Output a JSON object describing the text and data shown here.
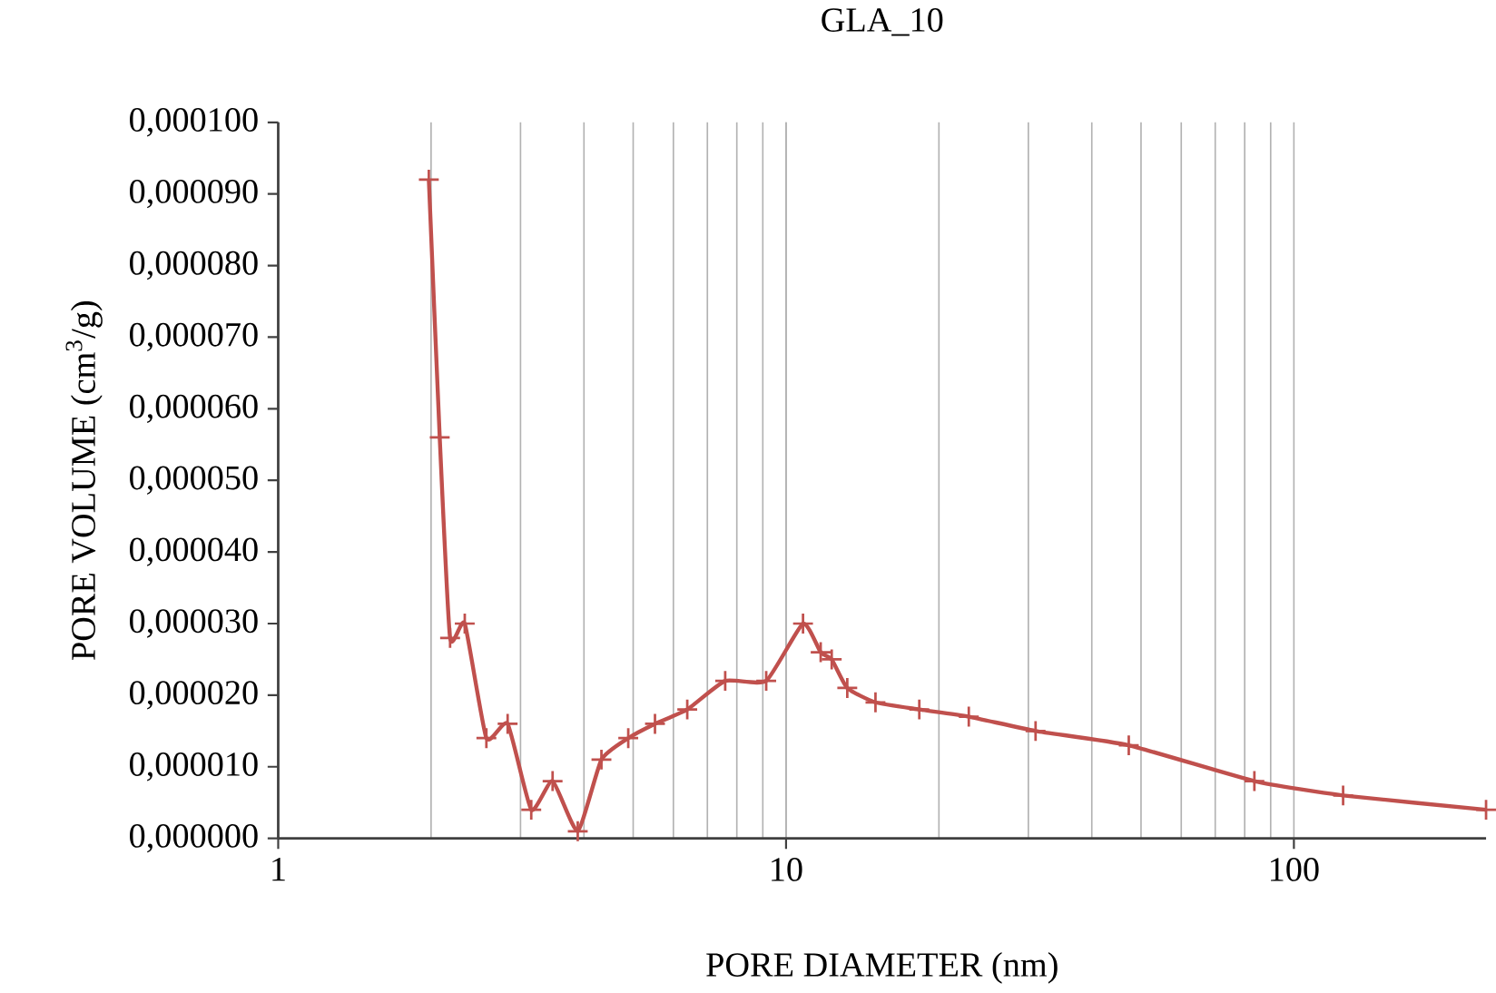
{
  "chart_data": {
    "type": "line",
    "title": "GLA_10",
    "xlabel": "PORE DIAMETER  (nm)",
    "ylabel": "PORE VOLUME  (cm$^{3}$/g)",
    "log": "x",
    "grid": "x",
    "marker": "cross",
    "line_style": "solid",
    "x": [
      1.98,
      2.08,
      2.18,
      2.33,
      2.57,
      2.83,
      3.15,
      3.47,
      3.89,
      4.33,
      4.89,
      5.52,
      6.39,
      7.59,
      9.14,
      10.8,
      11.7,
      12.3,
      13.2,
      15.0,
      18.3,
      22.9,
      31,
      47.3,
      83.6,
      125,
      239
    ],
    "series": [
      {
        "color": "#c0504d",
        "values": [
          9.2e-05,
          5.6e-05,
          2.8e-05,
          3e-05,
          1.4e-05,
          1.6e-05,
          4e-06,
          8e-06,
          1e-06,
          1.1e-05,
          1.4e-05,
          1.6e-05,
          1.8e-05,
          2.2e-05,
          2.2e-05,
          3e-05,
          2.6e-05,
          2.5e-05,
          2.1e-05,
          1.9e-05,
          1.8e-05,
          1.7e-05,
          1.5e-05,
          1.3e-05,
          8e-06,
          6e-06,
          4e-06
        ]
      }
    ],
    "xlim": [
      1,
      239
    ],
    "xticks": [
      1,
      10,
      100
    ],
    "ylim": [
      0,
      0.0001
    ],
    "yticks": [
      {
        "value": 0,
        "label": "0,000000"
      },
      {
        "value": 1e-05,
        "label": "0,000010"
      },
      {
        "value": 2e-05,
        "label": "0,000020"
      },
      {
        "value": 3e-05,
        "label": "0,000030"
      },
      {
        "value": 4e-05,
        "label": "0,000040"
      },
      {
        "value": 5e-05,
        "label": "0,000050"
      },
      {
        "value": 6e-05,
        "label": "0,000060"
      },
      {
        "value": 7e-05,
        "label": "0,000070"
      },
      {
        "value": 8e-05,
        "label": "0,000080"
      },
      {
        "value": 9e-05,
        "label": "0,000090"
      },
      {
        "value": 0.0001,
        "label": "0,000100"
      }
    ]
  }
}
